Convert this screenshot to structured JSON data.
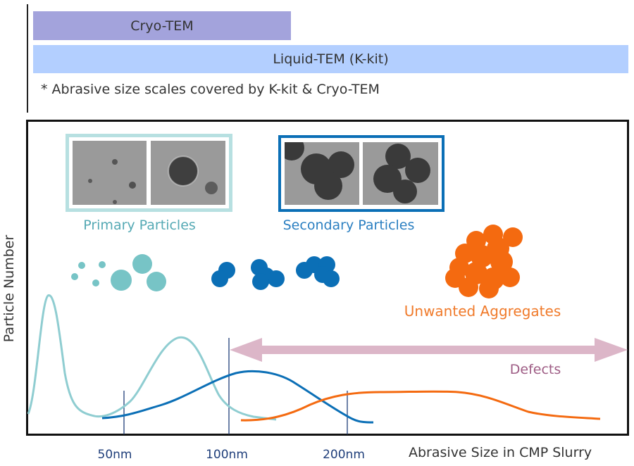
{
  "bars": {
    "cryo_tem": "Cryo-TEM",
    "liquid_tem": "Liquid-TEM (K-kit)"
  },
  "note": "* Abrasive size scales covered by K-kit & Cryo-TEM",
  "axes": {
    "y_label": "Particle Number",
    "x_label": "Abrasive Size in CMP Slurry",
    "ticks": [
      "50nm",
      "100nm",
      "200nm"
    ]
  },
  "labels": {
    "primary": "Primary Particles",
    "secondary": "Secondary Particles",
    "aggregates": "Unwanted Aggregates",
    "defects": "Defects"
  },
  "colors": {
    "primary": "#77c4c6",
    "secondary": "#0b6fb6",
    "aggregates": "#f46a10",
    "defects_arrow": "#dcb6c8",
    "cryo_bar": "#a3a3dc",
    "liquid_bar": "#b3cfff"
  }
}
